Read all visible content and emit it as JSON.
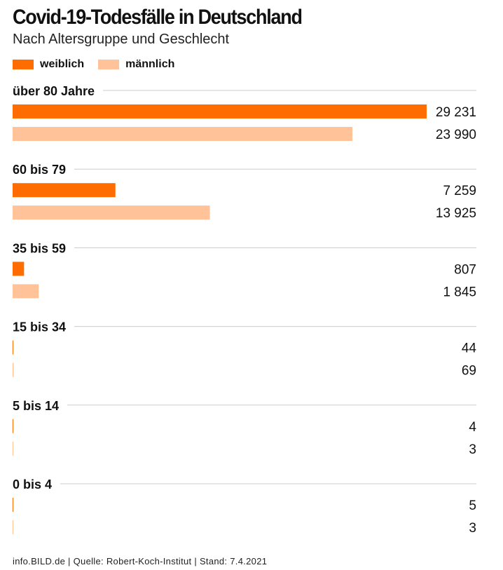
{
  "title": "Covid-19-Todesfälle in Deutschland",
  "subtitle": "Nach Altersgruppe und Geschlecht",
  "legend": [
    {
      "label": "weiblich",
      "color": "#ff6d00"
    },
    {
      "label": "männlich",
      "color": "#ffc299"
    }
  ],
  "footer": "info.BILD.de | Quelle: Robert-Koch-Institut | Stand: 7.4.2021",
  "chart_data": {
    "type": "bar",
    "orientation": "horizontal",
    "title": "Covid-19-Todesfälle in Deutschland",
    "subtitle": "Nach Altersgruppe und Geschlecht",
    "categories": [
      "über 80 Jahre",
      "60 bis 79",
      "35 bis 59",
      "15 bis 34",
      "5 bis 14",
      "0 bis 4"
    ],
    "series": [
      {
        "name": "weiblich",
        "color": "#ff6d00",
        "values": [
          29231,
          7259,
          807,
          44,
          4,
          5
        ],
        "labels": [
          "29 231",
          "7 259",
          "807",
          "44",
          "4",
          "5"
        ]
      },
      {
        "name": "männlich",
        "color": "#ffc299",
        "values": [
          23990,
          13925,
          1845,
          69,
          3,
          3
        ],
        "labels": [
          "23 990",
          "13 925",
          "1 845",
          "69",
          "3",
          "3"
        ]
      }
    ],
    "xlim": [
      0,
      29231
    ],
    "grid": false,
    "legend_position": "top-left"
  }
}
